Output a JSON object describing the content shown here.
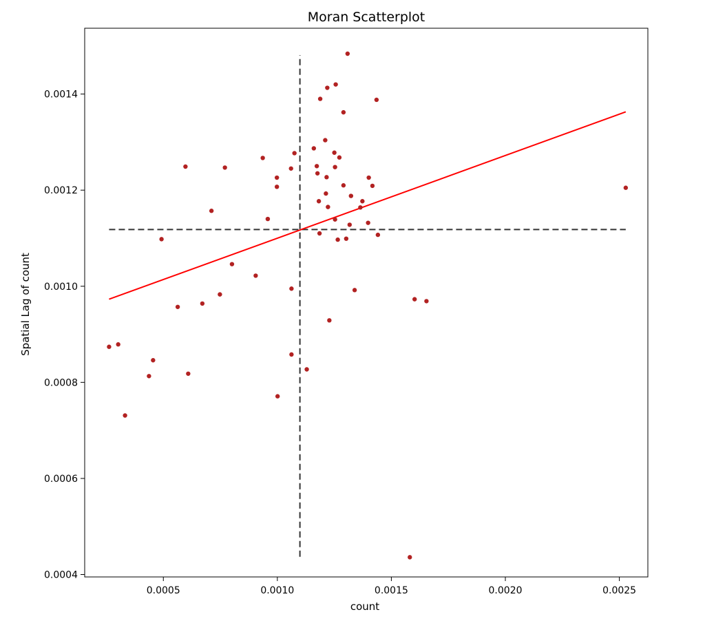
{
  "chart_data": {
    "type": "scatter",
    "title": "Moran Scatterplot",
    "xlabel": "count",
    "ylabel": "Spatial Lag of count",
    "xlim": [
      0.000155,
      0.002625
    ],
    "ylim": [
      0.000395,
      0.001537
    ],
    "xticks": [
      {
        "value": 0.0005,
        "label": "0.0005"
      },
      {
        "value": 0.001,
        "label": "0.0010"
      },
      {
        "value": 0.0015,
        "label": "0.0015"
      },
      {
        "value": 0.002,
        "label": "0.0020"
      },
      {
        "value": 0.0025,
        "label": "0.0025"
      }
    ],
    "yticks": [
      {
        "value": 0.0004,
        "label": "0.0004"
      },
      {
        "value": 0.0006,
        "label": "0.0006"
      },
      {
        "value": 0.0008,
        "label": "0.0008"
      },
      {
        "value": 0.001,
        "label": "0.0010"
      },
      {
        "value": 0.0012,
        "label": "0.0012"
      },
      {
        "value": 0.0014,
        "label": "0.0014"
      }
    ],
    "grid": false,
    "point_color": "#b22222",
    "fit_line": {
      "color": "#ff0000",
      "x": [
        0.000262,
        0.002528
      ],
      "y": [
        0.000973,
        0.001363
      ]
    },
    "mean_lines": {
      "color": "#333333",
      "style": "dashed",
      "x_mean": 0.001099,
      "y_mean": 0.001118,
      "x_extent": [
        0.000262,
        0.002528
      ],
      "y_extent": [
        0.000437,
        0.001481
      ]
    },
    "points": [
      [
        0.000262,
        0.000874
      ],
      [
        0.000302,
        0.000879
      ],
      [
        0.000332,
        0.000731
      ],
      [
        0.000437,
        0.000813
      ],
      [
        0.000455,
        0.000846
      ],
      [
        0.000492,
        0.001098
      ],
      [
        0.000563,
        0.000957
      ],
      [
        0.000597,
        0.001249
      ],
      [
        0.000609,
        0.000818
      ],
      [
        0.000671,
        0.000964
      ],
      [
        0.000711,
        0.001157
      ],
      [
        0.000748,
        0.000983
      ],
      [
        0.00077,
        0.001247
      ],
      [
        0.000801,
        0.001046
      ],
      [
        0.000905,
        0.001022
      ],
      [
        0.000936,
        0.001267
      ],
      [
        0.000958,
        0.00114
      ],
      [
        0.000998,
        0.001226
      ],
      [
        0.000998,
        0.001207
      ],
      [
        0.001001,
        0.000771
      ],
      [
        0.00106,
        0.001245
      ],
      [
        0.001062,
        0.000995
      ],
      [
        0.001062,
        0.000858
      ],
      [
        0.001075,
        0.001277
      ],
      [
        0.001129,
        0.000827
      ],
      [
        0.00116,
        0.001287
      ],
      [
        0.001173,
        0.00125
      ],
      [
        0.001176,
        0.001235
      ],
      [
        0.001182,
        0.001177
      ],
      [
        0.001185,
        0.00111
      ],
      [
        0.001188,
        0.00139
      ],
      [
        0.00121,
        0.001304
      ],
      [
        0.001213,
        0.001193
      ],
      [
        0.001216,
        0.001227
      ],
      [
        0.001219,
        0.001413
      ],
      [
        0.001222,
        0.001165
      ],
      [
        0.001228,
        0.000929
      ],
      [
        0.00125,
        0.001278
      ],
      [
        0.001253,
        0.001139
      ],
      [
        0.001253,
        0.001248
      ],
      [
        0.001256,
        0.00142
      ],
      [
        0.001265,
        0.001097
      ],
      [
        0.001272,
        0.001268
      ],
      [
        0.00129,
        0.00121
      ],
      [
        0.00129,
        0.001362
      ],
      [
        0.001302,
        0.001099
      ],
      [
        0.001308,
        0.001484
      ],
      [
        0.001317,
        0.001128
      ],
      [
        0.001323,
        0.001188
      ],
      [
        0.001339,
        0.000992
      ],
      [
        0.001364,
        0.001164
      ],
      [
        0.001373,
        0.001177
      ],
      [
        0.001398,
        0.001132
      ],
      [
        0.001401,
        0.001226
      ],
      [
        0.001417,
        0.001209
      ],
      [
        0.001435,
        0.001388
      ],
      [
        0.001441,
        0.001107
      ],
      [
        0.001581,
        0.000436
      ],
      [
        0.001602,
        0.000973
      ],
      [
        0.001654,
        0.000969
      ],
      [
        0.002528,
        0.001205
      ]
    ]
  }
}
